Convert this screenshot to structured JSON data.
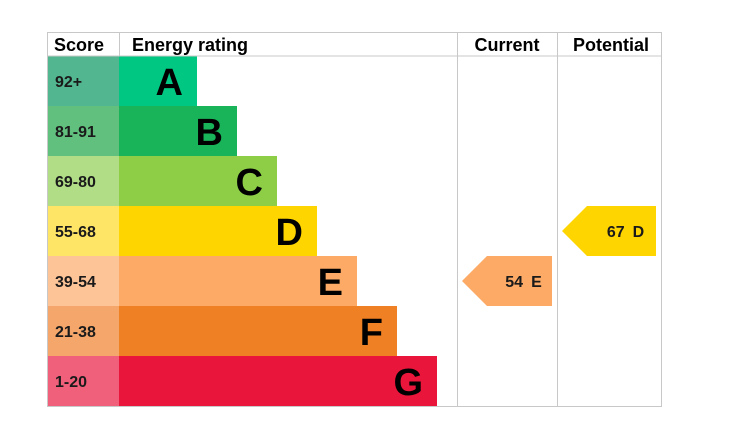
{
  "header": {
    "score": "Score",
    "energy_rating": "Energy rating",
    "current": "Current",
    "potential": "Potential"
  },
  "chart_data": {
    "type": "bar",
    "bands": [
      {
        "letter": "A",
        "range": "92+",
        "color": "#00c781",
        "score_color": "#52b791"
      },
      {
        "letter": "B",
        "range": "81-91",
        "color": "#19b459",
        "score_color": "#62c07f"
      },
      {
        "letter": "C",
        "range": "69-80",
        "color": "#8dce46",
        "score_color": "#b0dd86"
      },
      {
        "letter": "D",
        "range": "55-68",
        "color": "#ffd500",
        "score_color": "#ffe566"
      },
      {
        "letter": "E",
        "range": "39-54",
        "color": "#fcaa65",
        "score_color": "#fdc497"
      },
      {
        "letter": "F",
        "range": "21-38",
        "color": "#ef8023",
        "score_color": "#f4a66b"
      },
      {
        "letter": "G",
        "range": "1-20",
        "color": "#e9153b",
        "score_color": "#f0607b"
      }
    ],
    "current": {
      "value": 54,
      "letter": "E",
      "label": "54 E",
      "color": "#fcaa65"
    },
    "potential": {
      "value": 67,
      "letter": "D",
      "label": "67 D",
      "color": "#ffd500"
    }
  }
}
